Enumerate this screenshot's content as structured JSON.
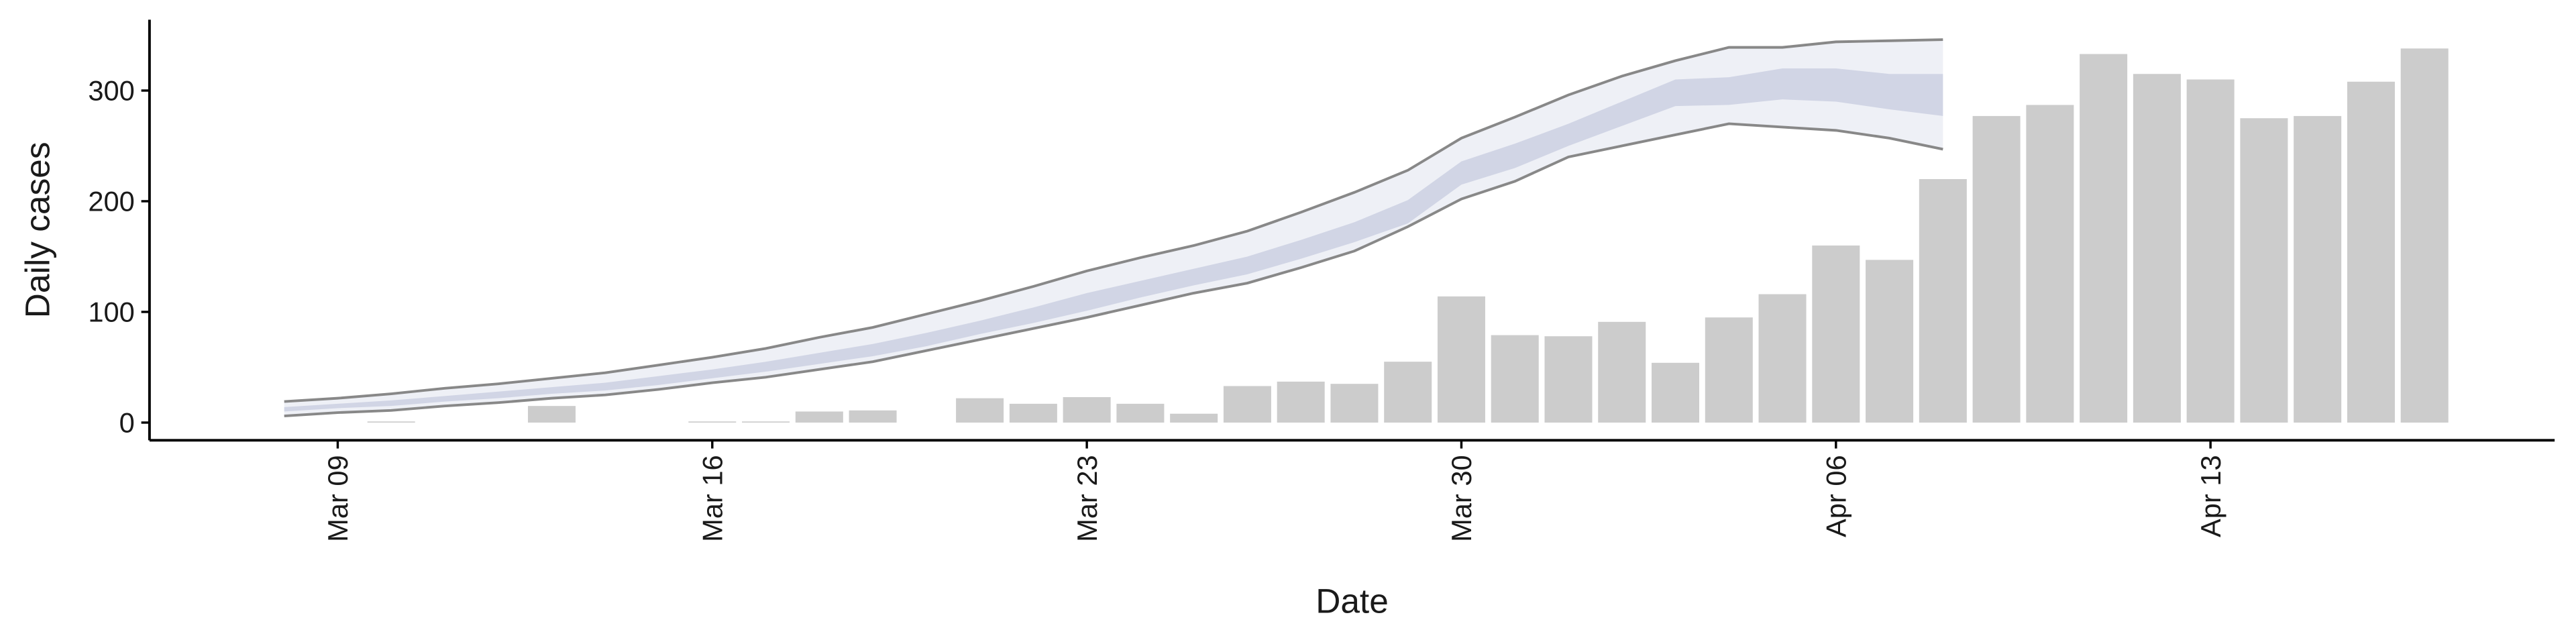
{
  "chart_data": {
    "type": "bar",
    "x_label": "Date",
    "y_label": "Daily cases",
    "categories": [
      null,
      "Mar 09",
      null,
      null,
      null,
      null,
      null,
      null,
      "Mar 16",
      null,
      null,
      null,
      null,
      null,
      null,
      "Mar 23",
      null,
      null,
      null,
      null,
      null,
      null,
      "Mar 30",
      null,
      null,
      null,
      null,
      null,
      null,
      "Apr 06",
      null,
      null,
      null,
      null,
      null,
      null,
      "Apr 13",
      null,
      null,
      null,
      null
    ],
    "values": [
      null,
      null,
      1,
      null,
      null,
      15,
      null,
      null,
      1,
      1,
      10,
      11,
      null,
      22,
      17,
      23,
      17,
      8,
      33,
      37,
      35,
      55,
      114,
      79,
      78,
      91,
      54,
      95,
      116,
      160,
      147,
      220,
      277,
      287,
      333,
      315,
      310,
      275,
      277,
      308,
      338
    ],
    "color": "#cccccc",
    "bands": [
      {
        "lower": [
          6,
          9,
          11,
          15,
          18,
          22,
          25,
          30,
          36,
          41,
          48,
          55,
          65,
          75,
          85,
          95,
          106,
          117,
          126,
          140,
          155,
          177,
          202,
          218,
          240,
          250,
          260,
          270,
          267,
          264,
          257,
          247
        ],
        "upper": [
          19,
          22,
          26,
          31,
          35,
          40,
          45,
          52,
          59,
          67,
          77,
          86,
          98,
          110,
          123,
          137,
          149,
          160,
          173,
          190,
          208,
          228,
          257,
          276,
          296,
          313,
          327,
          339,
          339,
          344,
          345,
          346
        ],
        "color": "#eceef5",
        "line_color": "#888888"
      },
      {
        "lower": [
          10,
          13,
          15,
          19,
          22,
          26,
          29,
          34,
          40,
          46,
          53,
          60,
          69,
          80,
          90,
          101,
          113,
          124,
          134,
          148,
          163,
          180,
          215,
          230,
          250,
          268,
          286,
          287,
          292,
          290,
          283,
          277
        ],
        "upper": [
          14,
          17,
          20,
          24,
          28,
          32,
          36,
          42,
          48,
          55,
          63,
          71,
          81,
          92,
          104,
          117,
          128,
          139,
          150,
          165,
          181,
          201,
          236,
          252,
          270,
          290,
          310,
          312,
          320,
          320,
          315,
          315
        ],
        "color": "#cdd2e3"
      }
    ],
    "ylim": [
      -16,
      364
    ],
    "yticks": [
      0,
      100,
      200,
      300
    ]
  }
}
